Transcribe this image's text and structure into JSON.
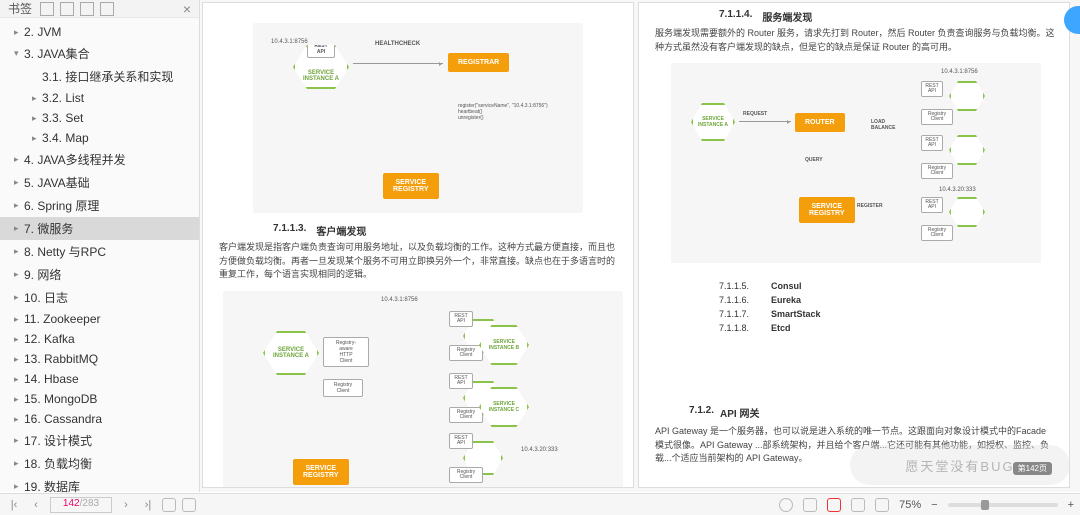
{
  "sidebar": {
    "title": "书签",
    "items": [
      {
        "label": "2. JVM",
        "level": 1,
        "ch": "▸"
      },
      {
        "label": "3. JAVA集合",
        "level": 1,
        "ch": "▾"
      },
      {
        "label": "3.1. 接口继承关系和实现",
        "level": 2,
        "ch": ""
      },
      {
        "label": "3.2. List",
        "level": 2,
        "ch": "▸"
      },
      {
        "label": "3.3. Set",
        "level": 2,
        "ch": "▸"
      },
      {
        "label": "3.4. Map",
        "level": 2,
        "ch": "▸"
      },
      {
        "label": "4. JAVA多线程并发",
        "level": 1,
        "ch": "▸"
      },
      {
        "label": "5. JAVA基础",
        "level": 1,
        "ch": "▸"
      },
      {
        "label": "6. Spring 原理",
        "level": 1,
        "ch": "▸"
      },
      {
        "label": "7.  微服务",
        "level": 1,
        "ch": "▸",
        "selected": true
      },
      {
        "label": "8. Netty 与RPC",
        "level": 1,
        "ch": "▸"
      },
      {
        "label": "9. 网络",
        "level": 1,
        "ch": "▸"
      },
      {
        "label": "10. 日志",
        "level": 1,
        "ch": "▸"
      },
      {
        "label": "11. Zookeeper",
        "level": 1,
        "ch": "▸"
      },
      {
        "label": "12. Kafka",
        "level": 1,
        "ch": "▸"
      },
      {
        "label": "13. RabbitMQ",
        "level": 1,
        "ch": "▸"
      },
      {
        "label": "14. Hbase",
        "level": 1,
        "ch": "▸"
      },
      {
        "label": "15. MongoDB",
        "level": 1,
        "ch": "▸"
      },
      {
        "label": "16. Cassandra",
        "level": 1,
        "ch": "▸"
      },
      {
        "label": "17. 设计模式",
        "level": 1,
        "ch": "▸"
      },
      {
        "label": "18. 负载均衡",
        "level": 1,
        "ch": "▸"
      },
      {
        "label": "19. 数据库",
        "level": 1,
        "ch": "▸"
      }
    ]
  },
  "left_page": {
    "d1": {
      "ip": "10.4.3.1:8756",
      "rest": "REST\nAPI",
      "svc": "SERVICE\nINSTANCE A",
      "health": "HEALTHCHECK",
      "registrar": "REGISTRAR",
      "register_lines": "register(\"serviceName\", \"10.4.3.1:8756\")\nheartbeat()\nunregister()",
      "registry": "SERVICE\nREGISTRY"
    },
    "s1_num": "7.1.1.3.",
    "s1_title": "客户端发现",
    "s1_body": "客户端发现是指客户端负责查询可用服务地址，以及负载均衡的工作。这种方式最方便直接，而且也方便做负载均衡。再者一旦发现某个服务不可用立即换另外一个，非常直接。缺点也在于多语言时的重复工作，每个语言实现相同的逻辑。",
    "d2": {
      "ip": "10.4.3.1:8756",
      "svc": "SERVICE\nINSTANCE A",
      "client": "Registry-\naware\nHTTP\nClient",
      "rest": "REST\nAPI",
      "reg_client": "Registry\nClient",
      "svc_b": "SERVICE\nINSTANCE B",
      "svc_c": "SERVICE\nINSTANCE C",
      "ip2": "10.4.3.20:333",
      "registry": "SERVICE\nREGISTRY"
    }
  },
  "right_page": {
    "s2_num": "7.1.1.4.",
    "s2_title": "服务端发现",
    "s2_body": "服务端发现需要额外的 Router 服务，请求先打到 Router，然后 Router 负责查询服务与负载均衡。这种方式虽然没有客户端发现的缺点，但是它的缺点是保证 Router 的高可用。",
    "d1": {
      "svc": "SERVICE\nINSTANCE A",
      "request": "REQUEST",
      "router": "ROUTER",
      "load": "LOAD\nBALANCE",
      "query": "QUERY",
      "registry": "SERVICE\nREGISTRY",
      "register": "REGISTER",
      "rest": "REST\nAPI",
      "regc": "Registry\nClient",
      "ip1": "10.4.3.1:8756",
      "ip2": "10.4.3.20:333"
    },
    "toc": [
      {
        "num": "7.1.1.5.",
        "title": "Consul"
      },
      {
        "num": "7.1.1.6.",
        "title": "Eureka"
      },
      {
        "num": "7.1.1.7.",
        "title": "SmartStack"
      },
      {
        "num": "7.1.1.8.",
        "title": "Etcd"
      }
    ],
    "s3_num": "7.1.2.",
    "s3_title": "API 网关",
    "s3_body": "API  Gateway  是一个服务器，也可以说是进入系统的唯一节点。这跟面向对象设计模式中的Facade 模式很像。API Gateway ...部系统架构，并且给个客户端...它还可能有其他功能，如授权、监控、负载...个适应当前架构的 API Gateway。"
  },
  "statusbar": {
    "page_current": "142",
    "page_total": "/283",
    "zoom": "75%",
    "comment_badge": "第142页"
  },
  "colors": {
    "green": "#8bc34a",
    "orange": "#f59e0b",
    "sidebar_sel": "#d9d9d9"
  }
}
